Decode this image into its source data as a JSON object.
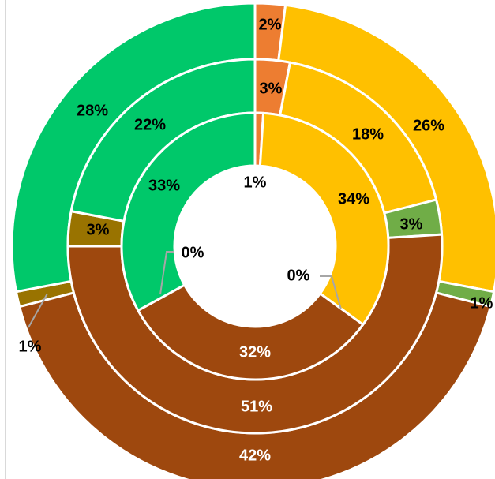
{
  "chart_data": {
    "type": "doughnut",
    "title": "",
    "categories": [
      "Orange",
      "Yellow",
      "Light green",
      "Brown",
      "Olive",
      "Green"
    ],
    "series": [
      {
        "ring": "inner",
        "values": [
          1,
          34,
          0,
          32,
          0,
          33
        ]
      },
      {
        "ring": "middle",
        "values": [
          3,
          18,
          3,
          51,
          3,
          22
        ]
      },
      {
        "ring": "outer",
        "values": [
          2,
          26,
          1,
          42,
          1,
          28
        ]
      }
    ],
    "labels": {
      "inner": [
        "1%",
        "34%",
        "0%",
        "32%",
        "0%",
        "33%"
      ],
      "middle": [
        "3%",
        "18%",
        "3%",
        "51%",
        "3%",
        "22%"
      ],
      "outer": [
        "2%",
        "26%",
        "1%",
        "42%",
        "1%",
        "28%"
      ]
    },
    "colors": [
      "#ED7D31",
      "#FFC000",
      "#70AD47",
      "#9E480E",
      "#997300",
      "#00C86A"
    ],
    "legend": "none"
  }
}
